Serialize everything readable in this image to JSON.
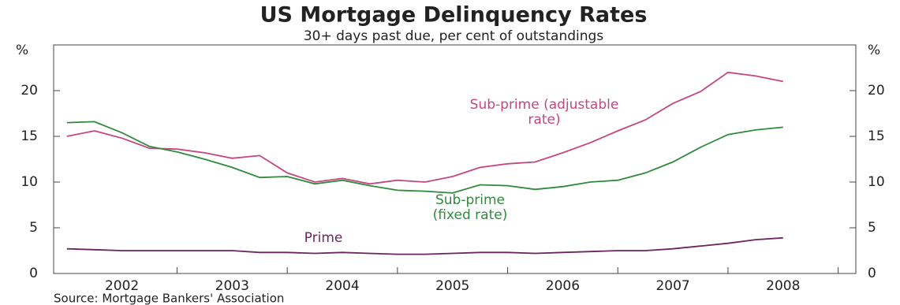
{
  "chart_data": {
    "type": "line",
    "title": "US Mortgage Delinquency Rates",
    "subtitle": "30+ days past due, per cent of outstandings",
    "y_label": "%",
    "source": "Source: Mortgage Bankers' Association",
    "x": [
      2002.0,
      2002.25,
      2002.5,
      2002.75,
      2003.0,
      2003.25,
      2003.5,
      2003.75,
      2004.0,
      2004.25,
      2004.5,
      2004.75,
      2005.0,
      2005.25,
      2005.5,
      2005.75,
      2006.0,
      2006.25,
      2006.5,
      2006.75,
      2007.0,
      2007.25,
      2007.5,
      2007.75,
      2008.0,
      2008.25,
      2008.5
    ],
    "xlim": [
      2001.88,
      2009.16
    ],
    "xticks": [
      {
        "value": 2002.5,
        "label": "2002"
      },
      {
        "value": 2003.5,
        "label": "2003"
      },
      {
        "value": 2004.5,
        "label": "2004"
      },
      {
        "value": 2005.5,
        "label": "2005"
      },
      {
        "value": 2006.5,
        "label": "2006"
      },
      {
        "value": 2007.5,
        "label": "2007"
      },
      {
        "value": 2008.5,
        "label": "2008"
      }
    ],
    "ylim": [
      0,
      25
    ],
    "yticks": [
      0,
      5,
      10,
      15,
      20
    ],
    "series": [
      {
        "name": "Sub-prime (adjustable rate)",
        "color": "#c4477f",
        "values": [
          15.0,
          15.6,
          14.8,
          13.7,
          13.6,
          13.2,
          12.6,
          12.9,
          11.0,
          10.0,
          10.4,
          9.8,
          10.2,
          10.0,
          10.6,
          11.6,
          12.0,
          12.2,
          13.2,
          14.3,
          15.6,
          16.8,
          18.6,
          19.9,
          22.0,
          21.6,
          21.0
        ]
      },
      {
        "name": "Sub-prime (fixed rate)",
        "color": "#2f8a3c",
        "values": [
          16.5,
          16.6,
          15.4,
          13.9,
          13.3,
          12.5,
          11.6,
          10.5,
          10.6,
          9.8,
          10.2,
          9.6,
          9.1,
          9.0,
          8.8,
          9.7,
          9.6,
          9.2,
          9.5,
          10.0,
          10.2,
          11.0,
          12.2,
          13.8,
          15.2,
          15.7,
          16.0
        ]
      },
      {
        "name": "Prime",
        "color": "#6b2560",
        "values": [
          2.7,
          2.6,
          2.5,
          2.5,
          2.5,
          2.5,
          2.5,
          2.3,
          2.3,
          2.2,
          2.3,
          2.2,
          2.1,
          2.1,
          2.2,
          2.3,
          2.3,
          2.2,
          2.3,
          2.4,
          2.5,
          2.5,
          2.7,
          3.0,
          3.3,
          3.7,
          3.9
        ]
      }
    ]
  }
}
